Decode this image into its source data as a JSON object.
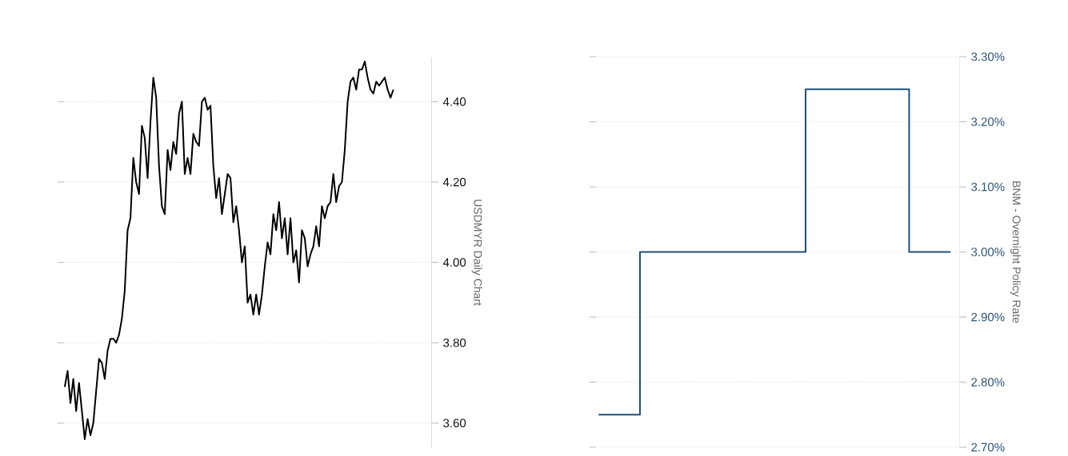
{
  "chart_data": [
    {
      "type": "line",
      "ylabel": "USDMYR Daily Chart",
      "grid": "y",
      "ylim": [
        3.54,
        4.51
      ],
      "categories": [
        null,
        null,
        null,
        null,
        null,
        null,
        null,
        null,
        null,
        null,
        null,
        null,
        null,
        null,
        null,
        null,
        null,
        null,
        null,
        null,
        null,
        null,
        null,
        null,
        null,
        null,
        null,
        null,
        null,
        null,
        null,
        null,
        null,
        null,
        null,
        null,
        null,
        null,
        null,
        null,
        null,
        null,
        null,
        null,
        null,
        null,
        null,
        null,
        null,
        null,
        null,
        null,
        null,
        null,
        null,
        null,
        null,
        null,
        null,
        null,
        null,
        null,
        null,
        null,
        null,
        null,
        null,
        null,
        null,
        null,
        null,
        null,
        null,
        null,
        null,
        null,
        null,
        null,
        null,
        null,
        null,
        null,
        null,
        null,
        null,
        null,
        null,
        null,
        null,
        null,
        null,
        null,
        null,
        null,
        null,
        null,
        null,
        null,
        null,
        null,
        null,
        null,
        null,
        null,
        null,
        null,
        null,
        null,
        null,
        null,
        null,
        null,
        null,
        null,
        null,
        null
      ],
      "yticks": [
        {
          "value": 3.6,
          "label": "3.60"
        },
        {
          "value": 3.8,
          "label": "3.80"
        },
        {
          "value": 4.0,
          "label": "4.00"
        },
        {
          "value": 4.2,
          "label": "4.20"
        },
        {
          "value": 4.4,
          "label": "4.40"
        }
      ],
      "series": [
        {
          "color": "#000000",
          "values": [
            3.69,
            3.73,
            3.65,
            3.71,
            3.63,
            3.7,
            3.63,
            3.56,
            3.61,
            3.57,
            3.6,
            3.68,
            3.76,
            3.75,
            3.71,
            3.78,
            3.81,
            3.81,
            3.8,
            3.82,
            3.86,
            3.93,
            4.08,
            4.11,
            4.26,
            4.2,
            4.17,
            4.34,
            4.31,
            4.21,
            4.35,
            4.46,
            4.41,
            4.24,
            4.14,
            4.12,
            4.28,
            4.23,
            4.3,
            4.27,
            4.37,
            4.4,
            4.22,
            4.26,
            4.22,
            4.32,
            4.3,
            4.29,
            4.4,
            4.41,
            4.38,
            4.39,
            4.24,
            4.16,
            4.21,
            4.12,
            4.17,
            4.22,
            4.21,
            4.1,
            4.14,
            4.08,
            4.0,
            4.04,
            3.9,
            3.92,
            3.87,
            3.92,
            3.87,
            3.92,
            3.99,
            4.05,
            4.02,
            4.12,
            4.08,
            4.15,
            4.06,
            4.11,
            4.02,
            4.11,
            4.0,
            4.03,
            3.95,
            4.08,
            4.06,
            3.99,
            4.02,
            4.04,
            4.09,
            4.04,
            4.14,
            4.11,
            4.14,
            4.15,
            4.22,
            4.15,
            4.19,
            4.2,
            4.28,
            4.4,
            4.45,
            4.46,
            4.43,
            4.48,
            4.48,
            4.5,
            4.46,
            4.43,
            4.42,
            4.45,
            4.44,
            4.45,
            4.46,
            4.43,
            4.41,
            4.43
          ]
        }
      ]
    },
    {
      "type": "step",
      "ylabel": "BNM - Overnight Policy Rate",
      "grid": "y",
      "ylim": [
        2.7,
        3.3
      ],
      "categories": [
        null,
        null,
        null,
        null,
        null,
        null,
        null,
        null,
        null,
        null,
        null,
        null,
        null,
        null,
        null,
        null,
        null,
        null,
        null,
        null,
        null,
        null,
        null,
        null,
        null,
        null,
        null,
        null,
        null,
        null,
        null,
        null,
        null,
        null,
        null
      ],
      "yticks": [
        {
          "value": 2.7,
          "label": "2.70%"
        },
        {
          "value": 2.8,
          "label": "2.80%"
        },
        {
          "value": 2.9,
          "label": "2.90%"
        },
        {
          "value": 3.0,
          "label": "3.00%"
        },
        {
          "value": 3.1,
          "label": "3.10%"
        },
        {
          "value": 3.2,
          "label": "3.20%"
        },
        {
          "value": 3.3,
          "label": "3.30%"
        }
      ],
      "series": [
        {
          "color": "#1f4e79",
          "values": [
            2.75,
            2.75,
            2.75,
            2.75,
            3.0,
            3.0,
            3.0,
            3.0,
            3.0,
            3.0,
            3.0,
            3.0,
            3.0,
            3.0,
            3.0,
            3.0,
            3.0,
            3.0,
            3.0,
            3.0,
            3.25,
            3.25,
            3.25,
            3.25,
            3.25,
            3.25,
            3.25,
            3.25,
            3.25,
            3.25,
            3.0,
            3.0,
            3.0,
            3.0,
            3.0
          ]
        }
      ]
    }
  ]
}
